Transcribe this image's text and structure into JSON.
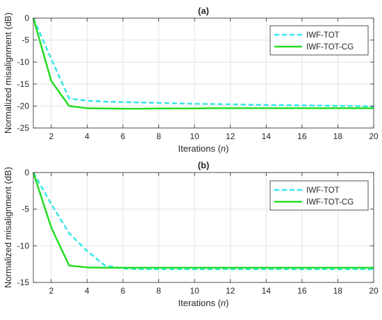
{
  "chart_data": [
    {
      "type": "line",
      "title": "(a)",
      "xlabel": "Iterations",
      "xlabel_var": "n",
      "ylabel": "Normalized misalignment (dB)",
      "x": [
        1,
        2,
        3,
        4,
        5,
        6,
        7,
        8,
        9,
        10,
        11,
        12,
        13,
        14,
        15,
        16,
        17,
        18,
        19,
        20
      ],
      "xlim": [
        1,
        20
      ],
      "ylim": [
        -25,
        0
      ],
      "xticks": [
        2,
        4,
        6,
        8,
        10,
        12,
        14,
        16,
        18,
        20
      ],
      "yticks": [
        0,
        -5,
        -10,
        -15,
        -20,
        -25
      ],
      "grid": true,
      "legend_position": "top-right",
      "series": [
        {
          "name": "IWF-TOT",
          "color": "#33e6e6",
          "style": "dashed",
          "values": [
            0,
            -9.3,
            -18.3,
            -18.8,
            -19.0,
            -19.1,
            -19.2,
            -19.3,
            -19.4,
            -19.5,
            -19.55,
            -19.6,
            -19.7,
            -19.75,
            -19.8,
            -19.85,
            -19.9,
            -19.95,
            -20.0,
            -20.1
          ]
        },
        {
          "name": "IWF-TOT-CG",
          "color": "#22dd22",
          "style": "solid",
          "values": [
            0,
            -14.3,
            -20.0,
            -20.5,
            -20.55,
            -20.6,
            -20.6,
            -20.55,
            -20.55,
            -20.55,
            -20.5,
            -20.5,
            -20.5,
            -20.5,
            -20.5,
            -20.5,
            -20.5,
            -20.5,
            -20.5,
            -20.5
          ]
        }
      ]
    },
    {
      "type": "line",
      "title": "(b)",
      "xlabel": "Iterations",
      "xlabel_var": "n",
      "ylabel": "Normalized misalignment (dB)",
      "x": [
        1,
        2,
        3,
        4,
        5,
        6,
        7,
        8,
        9,
        10,
        11,
        12,
        13,
        14,
        15,
        16,
        17,
        18,
        19,
        20
      ],
      "xlim": [
        1,
        20
      ],
      "ylim": [
        -15,
        0
      ],
      "xticks": [
        2,
        4,
        6,
        8,
        10,
        12,
        14,
        16,
        18,
        20
      ],
      "yticks": [
        0,
        -5,
        -10,
        -15
      ],
      "grid": true,
      "legend_position": "top-right",
      "series": [
        {
          "name": "IWF-TOT",
          "color": "#33e6e6",
          "style": "dashed",
          "values": [
            0,
            -4.3,
            -8.3,
            -10.7,
            -12.7,
            -13.1,
            -13.2,
            -13.2,
            -13.2,
            -13.2,
            -13.2,
            -13.2,
            -13.2,
            -13.2,
            -13.2,
            -13.2,
            -13.2,
            -13.2,
            -13.2,
            -13.2
          ]
        },
        {
          "name": "IWF-TOT-CG",
          "color": "#22dd22",
          "style": "solid",
          "values": [
            0,
            -7.5,
            -12.7,
            -12.95,
            -13.0,
            -13.0,
            -13.0,
            -13.0,
            -13.0,
            -13.0,
            -13.0,
            -13.0,
            -13.0,
            -13.0,
            -13.0,
            -13.0,
            -13.0,
            -13.0,
            -13.0,
            -13.0
          ]
        }
      ]
    }
  ]
}
